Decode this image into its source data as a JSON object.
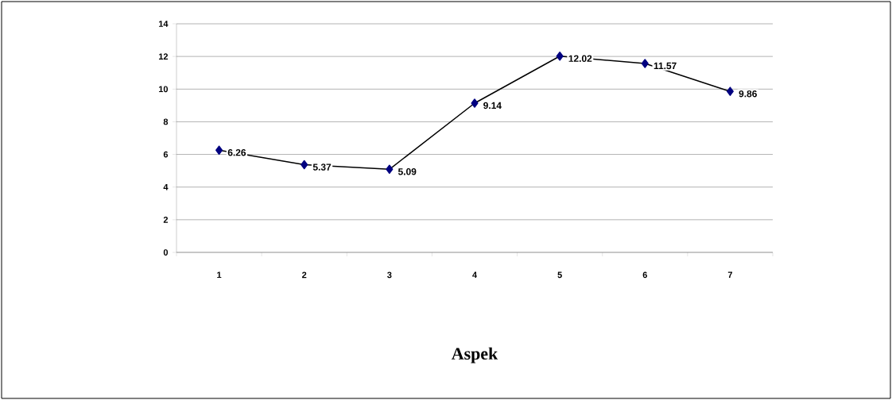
{
  "chart_data": {
    "type": "line",
    "xlabel": "Aspek",
    "categories": [
      "1",
      "2",
      "3",
      "4",
      "5",
      "6",
      "7"
    ],
    "values": [
      6.26,
      5.37,
      5.09,
      9.14,
      12.02,
      11.57,
      9.86
    ],
    "color": "#000080",
    "ylim": [
      0,
      14
    ],
    "yticks": [
      0,
      2,
      4,
      6,
      8,
      10,
      12,
      14
    ],
    "grid": "y",
    "marker": "diamond",
    "line_style": "solid",
    "data_labels": true
  }
}
